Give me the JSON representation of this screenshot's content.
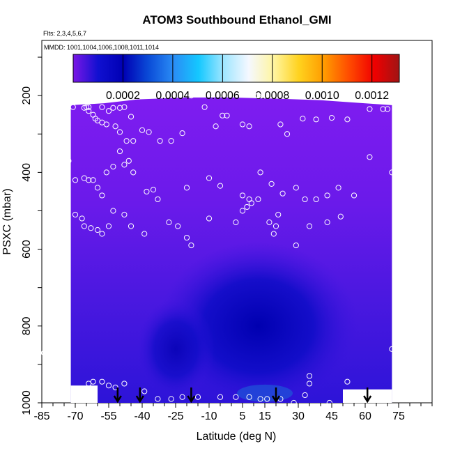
{
  "chart_data": {
    "type": "heatmap",
    "title": "ATOM3 Southbound Ethanol_GMI",
    "subtitle_flights": "Flts: 2,3,4,5,6,7",
    "subtitle_dates": "MMDD: 1001,1004,1006,1008,1011,1014",
    "xlabel": "Latitude (deg N)",
    "ylabel": "PSXC (mbar)",
    "xlim": [
      -85,
      90
    ],
    "ylim": [
      1000,
      60
    ],
    "x_ticks": [
      "-85",
      "-70",
      "-55",
      "-40",
      "-25",
      "-10",
      "5",
      "15",
      "30",
      "45",
      "60",
      "75"
    ],
    "y_ticks": [
      "200",
      "400",
      "600",
      "800",
      "1000"
    ],
    "colorbar": {
      "range": [
        0,
        0.00131
      ],
      "ticks": [
        "0.0002",
        "0.0004",
        "0.0006",
        "0.0008",
        "0.0010",
        "0.0012"
      ],
      "colors": [
        "#7a17e6",
        "#1010d0",
        "#0000b4",
        "#0a4bd7",
        "#2a8cf5",
        "#14c8ff",
        "#a0e6ff",
        "#f5f8ff",
        "#fff5a0",
        "#ffd21e",
        "#ff9b00",
        "#ff4b00",
        "#f00000",
        "#a01414"
      ]
    },
    "domain": {
      "lat": [
        -72,
        72
      ],
      "pressure_top_by_lat": [
        [
          -72,
          225
        ],
        [
          -57,
          220
        ],
        [
          -42,
          210
        ],
        [
          -20,
          205
        ],
        [
          0,
          205
        ],
        [
          20,
          208
        ],
        [
          40,
          212
        ],
        [
          55,
          218
        ],
        [
          72,
          225
        ]
      ]
    },
    "field_description": "Background ethanol near 0.00003-0.00005 in upper troposphere; minimum 0.00001-0.00002 in lower troposphere between 30S and 45N centered near 15N, 800 mbar",
    "observations": [
      [
        -71,
        230
      ],
      [
        -66,
        232
      ],
      [
        -65,
        230
      ],
      [
        -64,
        240
      ],
      [
        -64,
        230
      ],
      [
        -62,
        250
      ],
      [
        -61,
        260
      ],
      [
        -58,
        230
      ],
      [
        -55,
        240
      ],
      [
        -53,
        232
      ],
      [
        -50,
        232
      ],
      [
        -48,
        230
      ],
      [
        -45,
        255
      ],
      [
        -60,
        265
      ],
      [
        -58,
        270
      ],
      [
        -56,
        275
      ],
      [
        -52,
        280
      ],
      [
        -50,
        295
      ],
      [
        -47,
        318
      ],
      [
        -44,
        318
      ],
      [
        -40,
        290
      ],
      [
        -37,
        295
      ],
      [
        -32,
        318
      ],
      [
        -27,
        318
      ],
      [
        -22,
        298
      ],
      [
        -18,
        200
      ],
      [
        -12,
        230
      ],
      [
        -7,
        280
      ],
      [
        -4,
        252
      ],
      [
        -2,
        252
      ],
      [
        5,
        275
      ],
      [
        8,
        280
      ],
      [
        12,
        200
      ],
      [
        22,
        275
      ],
      [
        25,
        300
      ],
      [
        32,
        260
      ],
      [
        38,
        262
      ],
      [
        45,
        258
      ],
      [
        52,
        262
      ],
      [
        62,
        235
      ],
      [
        68,
        235
      ],
      [
        70,
        235
      ],
      [
        -73,
        370
      ],
      [
        -70,
        420
      ],
      [
        -66,
        415
      ],
      [
        -64,
        420
      ],
      [
        -62,
        420
      ],
      [
        -60,
        440
      ],
      [
        -58,
        460
      ],
      [
        -56,
        400
      ],
      [
        -53,
        385
      ],
      [
        -50,
        345
      ],
      [
        -48,
        380
      ],
      [
        -46,
        370
      ],
      [
        -44,
        400
      ],
      [
        -38,
        450
      ],
      [
        -35,
        445
      ],
      [
        -33,
        470
      ],
      [
        -20,
        440
      ],
      [
        -10,
        415
      ],
      [
        -5,
        435
      ],
      [
        5,
        460
      ],
      [
        8,
        470
      ],
      [
        13,
        400
      ],
      [
        18,
        430
      ],
      [
        23,
        455
      ],
      [
        29,
        440
      ],
      [
        33,
        470
      ],
      [
        38,
        470
      ],
      [
        43,
        460
      ],
      [
        48,
        440
      ],
      [
        55,
        460
      ],
      [
        62,
        360
      ],
      [
        72,
        400
      ],
      [
        -70,
        510
      ],
      [
        -67,
        520
      ],
      [
        -66,
        540
      ],
      [
        -63,
        545
      ],
      [
        -60,
        550
      ],
      [
        -58,
        560
      ],
      [
        -55,
        540
      ],
      [
        -53,
        500
      ],
      [
        -48,
        510
      ],
      [
        -45,
        540
      ],
      [
        -39,
        560
      ],
      [
        -28,
        530
      ],
      [
        -24,
        540
      ],
      [
        -20,
        570
      ],
      [
        -18,
        590
      ],
      [
        -10,
        520
      ],
      [
        2,
        530
      ],
      [
        5,
        500
      ],
      [
        7,
        490
      ],
      [
        9,
        480
      ],
      [
        12,
        470
      ],
      [
        17,
        530
      ],
      [
        19,
        560
      ],
      [
        20,
        540
      ],
      [
        21,
        510
      ],
      [
        29,
        590
      ],
      [
        35,
        540
      ],
      [
        43,
        530
      ],
      [
        49,
        515
      ],
      [
        -84,
        870
      ],
      [
        -64,
        950
      ],
      [
        -62,
        945
      ],
      [
        -58,
        945
      ],
      [
        -55,
        955
      ],
      [
        -52,
        960
      ],
      [
        -48,
        950
      ],
      [
        -39,
        970
      ],
      [
        -33,
        990
      ],
      [
        -27,
        990
      ],
      [
        -22,
        985
      ],
      [
        -15,
        985
      ],
      [
        -5,
        985
      ],
      [
        2,
        985
      ],
      [
        8,
        985
      ],
      [
        13,
        990
      ],
      [
        16,
        990
      ],
      [
        22,
        990
      ],
      [
        28,
        1000
      ],
      [
        33,
        980
      ],
      [
        35,
        950
      ],
      [
        35,
        930
      ],
      [
        44,
        1000
      ],
      [
        52,
        945
      ],
      [
        72,
        860
      ]
    ],
    "arrows_at_lat": [
      -51,
      -41,
      -18,
      20,
      61
    ]
  }
}
